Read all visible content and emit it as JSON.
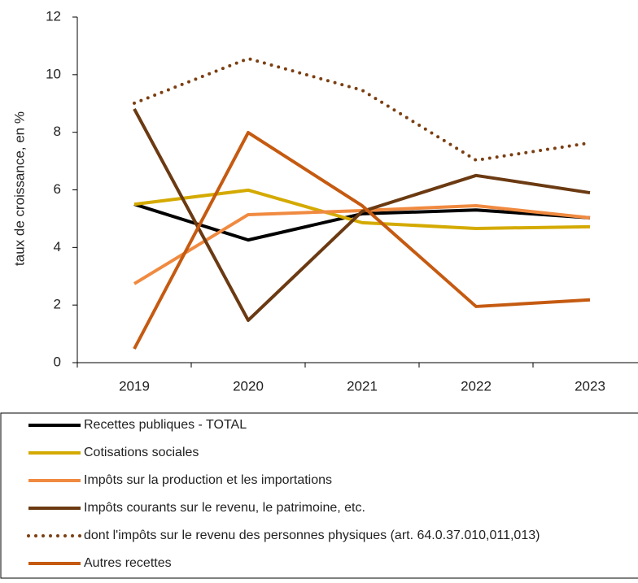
{
  "chart_data": {
    "type": "line",
    "ylabel": "taux de croissance, en %",
    "categories": [
      "2019",
      "2020",
      "2021",
      "2022",
      "2023"
    ],
    "ylim": [
      0,
      12
    ],
    "yticks": [
      0,
      2,
      4,
      6,
      8,
      10,
      12
    ],
    "series": [
      {
        "name": "Recettes publiques - TOTAL",
        "color": "#000000",
        "style": "solid",
        "values": [
          5.5,
          4.26,
          5.17,
          5.3,
          5.03
        ]
      },
      {
        "name": "Cotisations sociales",
        "color": "#d4aa00",
        "style": "solid",
        "values": [
          5.5,
          5.99,
          4.86,
          4.66,
          4.72
        ]
      },
      {
        "name": "Impôts sur la production et les importations",
        "color": "#f08a40",
        "style": "solid",
        "values": [
          2.74,
          5.14,
          5.28,
          5.45,
          5.03
        ]
      },
      {
        "name": "Impôts courants sur le revenu, le patrimoine, etc.",
        "color": "#6b3a12",
        "style": "solid",
        "values": [
          8.81,
          1.47,
          5.25,
          6.5,
          5.9
        ]
      },
      {
        "name": "dont l'impôts sur le revenu des personnes physiques (art. 64.0.37.010,011,013)",
        "color": "#7b3f12",
        "style": "dotted",
        "values": [
          9.01,
          10.56,
          9.46,
          7.03,
          7.63
        ]
      },
      {
        "name": "Autres recettes",
        "color": "#c55a11",
        "style": "solid",
        "values": [
          0.48,
          7.99,
          5.45,
          1.95,
          2.18
        ]
      }
    ]
  }
}
